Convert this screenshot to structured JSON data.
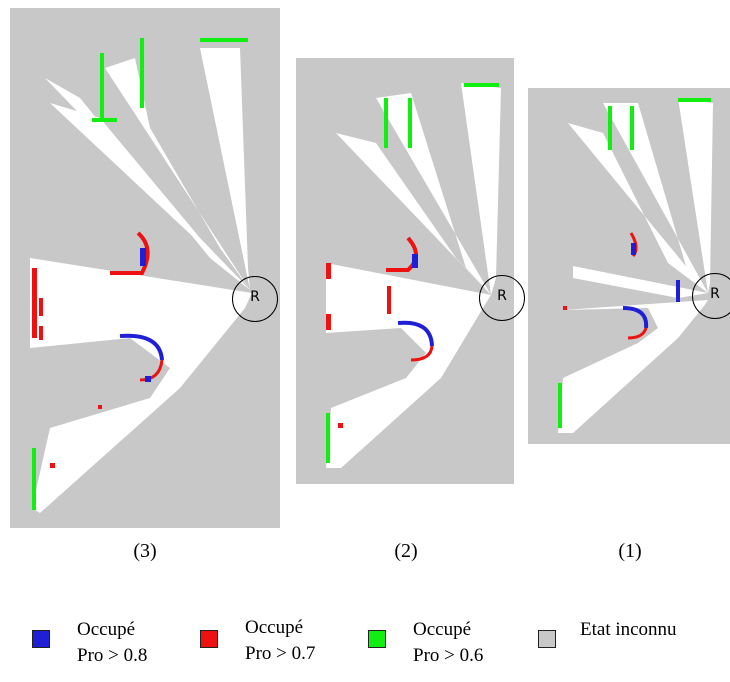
{
  "panels": [
    {
      "caption": "(3)",
      "robot_label": "R"
    },
    {
      "caption": "(2)",
      "robot_label": "R"
    },
    {
      "caption": "(1)",
      "robot_label": "R"
    }
  ],
  "legend": [
    {
      "line1": "Occupé",
      "line2": "Pro > 0.8",
      "color": "#1f1fd6"
    },
    {
      "line1": "Occupé",
      "line2": "Pro > 0.7",
      "color": "#ee1111"
    },
    {
      "line1": "Occupé",
      "line2": "Pro > 0.6",
      "color": "#11ee11"
    },
    {
      "line1": "Etat inconnu",
      "line2": "",
      "color": "#c8c8c8"
    }
  ],
  "colors": {
    "unknown": "#c8c8c8",
    "free": "#ffffff",
    "blue": "#1f1fd6",
    "red": "#ee1111",
    "green": "#11ee11"
  }
}
